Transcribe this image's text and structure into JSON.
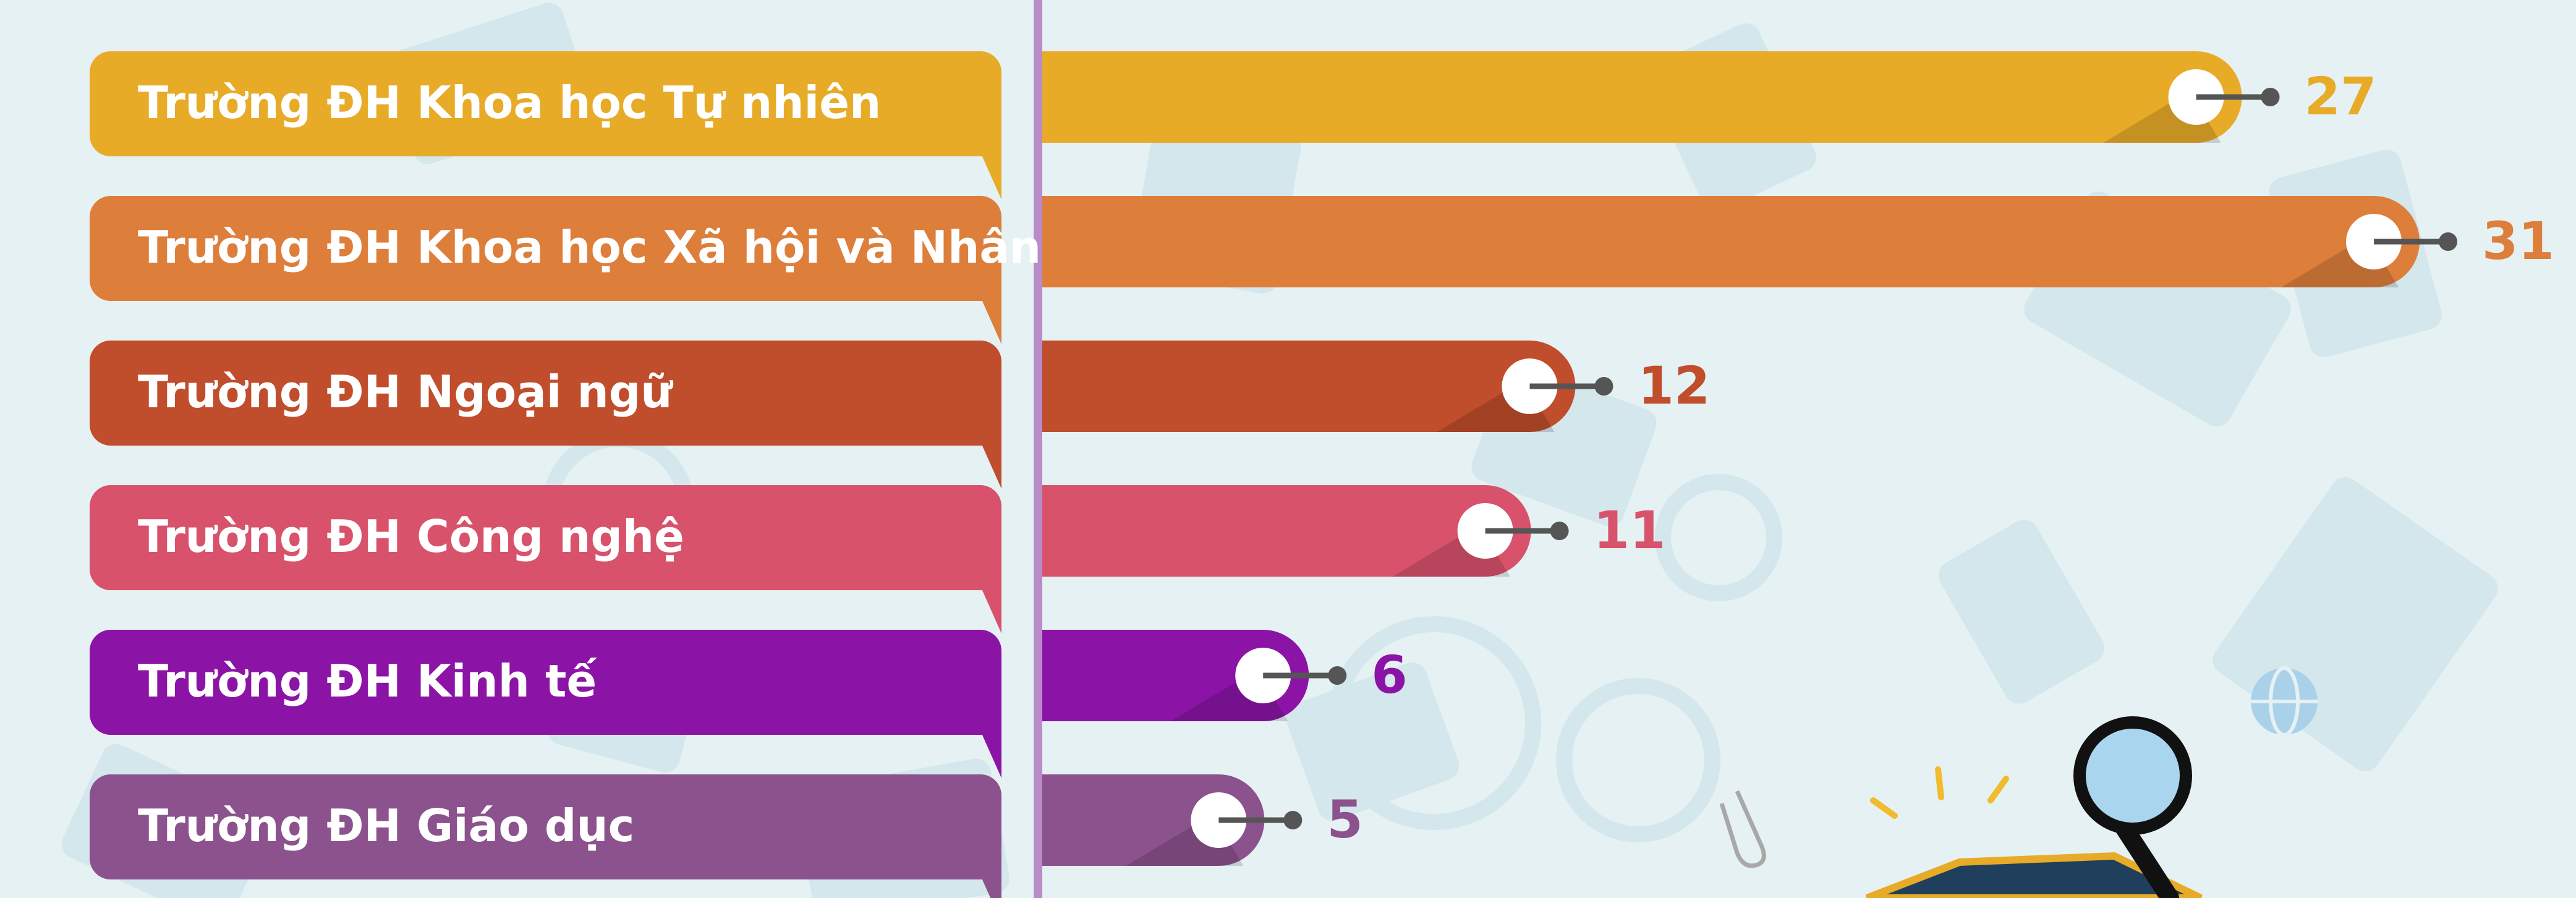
{
  "chart_data": {
    "type": "bar",
    "orientation": "horizontal",
    "categories": [
      "Trường ĐH Khoa học Tự nhiên",
      "Trường ĐH Khoa học Xã hội và Nhân văn",
      "Trường ĐH Ngoại ngữ",
      "Trường ĐH Công nghệ",
      "Trường ĐH Kinh tế",
      "Trường ĐH Giáo dục"
    ],
    "values": [
      27,
      31,
      12,
      11,
      6,
      5
    ],
    "value_labels": [
      "27",
      "31",
      "12",
      "11",
      "6",
      "5"
    ],
    "colors": [
      "#e7ab28",
      "#dd7e3b",
      "#c04d2b",
      "#d8526b",
      "#8b14a6",
      "#8c528d"
    ],
    "title": "",
    "xlabel": "",
    "ylabel": "",
    "xlim": [
      0,
      31
    ],
    "grid": false,
    "legend": "none"
  }
}
